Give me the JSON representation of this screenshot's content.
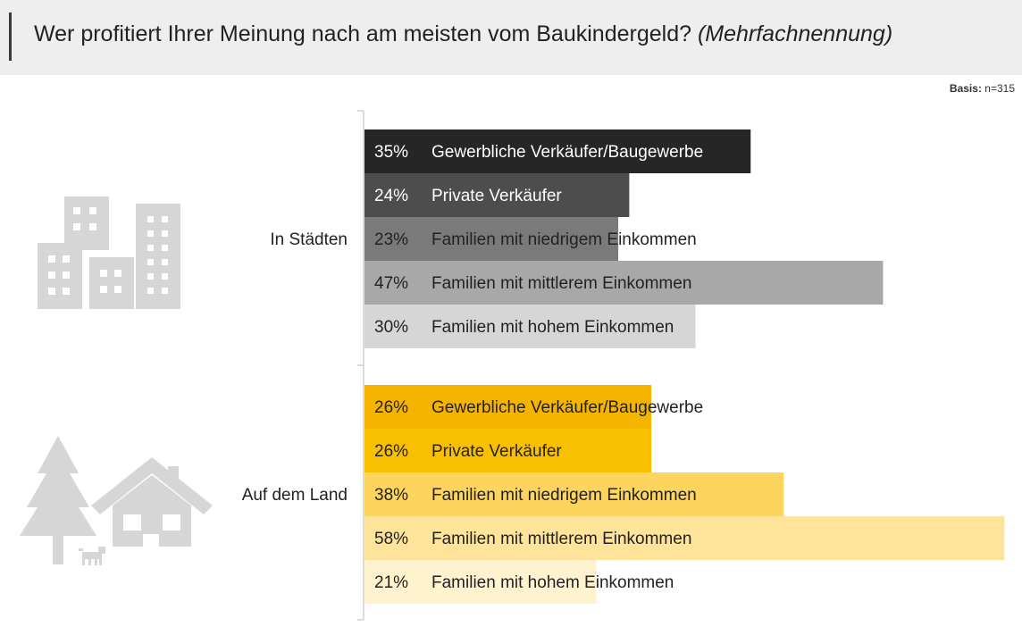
{
  "header": {
    "title": "Wer profitiert Ihrer Meinung nach am meisten vom Baukindergeld?",
    "title_note": "(Mehrfachnennung)"
  },
  "basis": {
    "label": "Basis:",
    "value": "n=315"
  },
  "icons": [
    "city-buildings-icon",
    "tree-icon",
    "house-icon",
    "dog-icon"
  ],
  "chart_data": {
    "type": "bar",
    "orientation": "horizontal",
    "unit": "%",
    "groups": [
      {
        "label": "In Städten",
        "bars": [
          {
            "label": "Gewerbliche Verkäufer/Baugewerbe",
            "value": 35,
            "display": "35%",
            "color": "#262626",
            "text_color": "#ffffff"
          },
          {
            "label": "Private Verkäufer",
            "value": 24,
            "display": "24%",
            "color": "#4d4d4d",
            "text_color": "#ffffff"
          },
          {
            "label": "Familien mit niedrigem Einkommen",
            "value": 23,
            "display": "23%",
            "color": "#7a7a7a",
            "text_color": "#222222"
          },
          {
            "label": "Familien mit mittlerem Einkommen",
            "value": 47,
            "display": "47%",
            "color": "#a8a8a8",
            "text_color": "#222222"
          },
          {
            "label": "Familien mit hohem Einkommen",
            "value": 30,
            "display": "30%",
            "color": "#d6d6d6",
            "text_color": "#222222"
          }
        ]
      },
      {
        "label": "Auf dem Land",
        "bars": [
          {
            "label": "Gewerbliche  Verkäufer/Baugewerbe",
            "value": 26,
            "display": "26%",
            "color": "#f5b400",
            "text_color": "#222222"
          },
          {
            "label": "Private Verkäufer",
            "value": 26,
            "display": "26%",
            "color": "#f8c000",
            "text_color": "#222222"
          },
          {
            "label": "Familien mit niedrigem Einkommen",
            "value": 38,
            "display": "38%",
            "color": "#fcd45e",
            "text_color": "#222222"
          },
          {
            "label": "Familien mit mittlerem Einkommen",
            "value": 58,
            "display": "58%",
            "color": "#fde49a",
            "text_color": "#222222"
          },
          {
            "label": "Familien mit hohem Einkommen",
            "value": 21,
            "display": "21%",
            "color": "#fff3cf",
            "text_color": "#222222"
          }
        ]
      }
    ]
  }
}
